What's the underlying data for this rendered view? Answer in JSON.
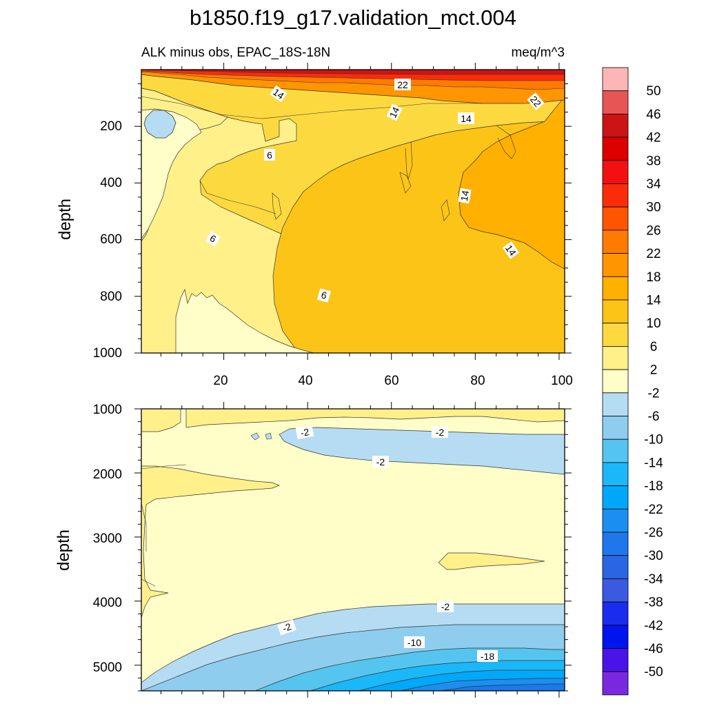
{
  "title": "b1850.f19_g17.validation_mct.004",
  "chart_data": {
    "type": "contour",
    "title": "b1850.f19_g17.validation_mct.004",
    "subtitle_left": "ALK minus obs, EPAC_18S-18N",
    "subtitle_right": "meq/m^3",
    "colorbar": {
      "levels": [
        "50",
        "46",
        "42",
        "38",
        "34",
        "30",
        "26",
        "22",
        "18",
        "14",
        "10",
        "6",
        "2",
        "-2",
        "-6",
        "-10",
        "-14",
        "-18",
        "-22",
        "-26",
        "-30",
        "-34",
        "-38",
        "-42",
        "-46",
        "-50"
      ],
      "colors": [
        "#fdb5b5",
        "#e85555",
        "#cc1414",
        "#dc0000",
        "#f41010",
        "#fa2c0a",
        "#ff5500",
        "#ff7a00",
        "#ff9500",
        "#ffb000",
        "#fdc418",
        "#fdd940",
        "#fff08a",
        "#fffdc8",
        "#b5dcf2",
        "#8ecdee",
        "#55c5f0",
        "#1ab8f8",
        "#00a8fa",
        "#1a8ff0",
        "#1e78ec",
        "#2a66e4",
        "#3a5ae0",
        "#1a2cf0",
        "#0014f0",
        "#4a14e8",
        "#7a28e0"
      ]
    },
    "panels": [
      {
        "name": "upper",
        "ylabel": "depth",
        "xlim": [
          0,
          101
        ],
        "ylim": [
          0,
          1000
        ],
        "xticks": [
          "20",
          "40",
          "60",
          "80",
          "100"
        ],
        "yticks": [
          "200",
          "400",
          "600",
          "800",
          "1000"
        ],
        "contour_labels": [
          "14",
          "22",
          "14",
          "14",
          "22",
          "6",
          "14",
          "6",
          "14",
          "6"
        ]
      },
      {
        "name": "lower",
        "ylabel": "depth",
        "xlim": [
          0,
          101
        ],
        "ylim": [
          1000,
          5400
        ],
        "yticks": [
          "1000",
          "2000",
          "3000",
          "4000",
          "5000"
        ],
        "contour_labels": [
          "-2",
          "-2",
          "-2",
          "-2",
          "-2",
          "-10",
          "-18"
        ]
      }
    ]
  }
}
